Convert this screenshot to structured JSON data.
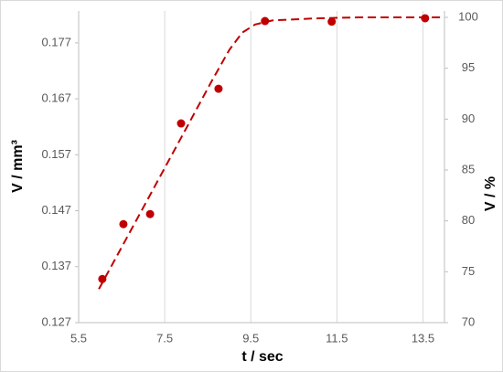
{
  "chart_data": {
    "type": "scatter",
    "x_label": "t / sec",
    "y_label": "V / mm³",
    "y2_label": "V / %",
    "xlim": [
      5.5,
      14.0
    ],
    "xticks": [
      5.5,
      7.5,
      9.5,
      11.5,
      13.5
    ],
    "ylim": [
      0.127,
      0.1827
    ],
    "yticks": [
      0.127,
      0.137,
      0.147,
      0.157,
      0.167,
      0.177
    ],
    "y2lim": [
      70,
      100.63
    ],
    "y2ticks": [
      70,
      75,
      80,
      85,
      90,
      95,
      100
    ],
    "grid": true,
    "series": [
      {
        "color": "#c00000",
        "mode": "markers",
        "x": [
          6.05,
          6.54,
          7.16,
          7.88,
          8.75,
          9.83,
          11.38,
          13.55
        ],
        "values": [
          0.1348,
          0.1446,
          0.1464,
          0.1626,
          0.1688,
          0.1809,
          0.1808,
          0.1814
        ]
      },
      {
        "color": "#c00000",
        "mode": "dashed-line",
        "axis": "y2",
        "x": [
          5.97,
          7.0,
          8.0,
          8.6,
          9.0,
          9.3,
          9.6,
          10.0,
          11.0,
          12.0,
          14.0
        ],
        "values": [
          73.3,
          81.3,
          89.1,
          93.8,
          96.8,
          98.5,
          99.3,
          99.7,
          99.9,
          100,
          100
        ]
      }
    ]
  }
}
